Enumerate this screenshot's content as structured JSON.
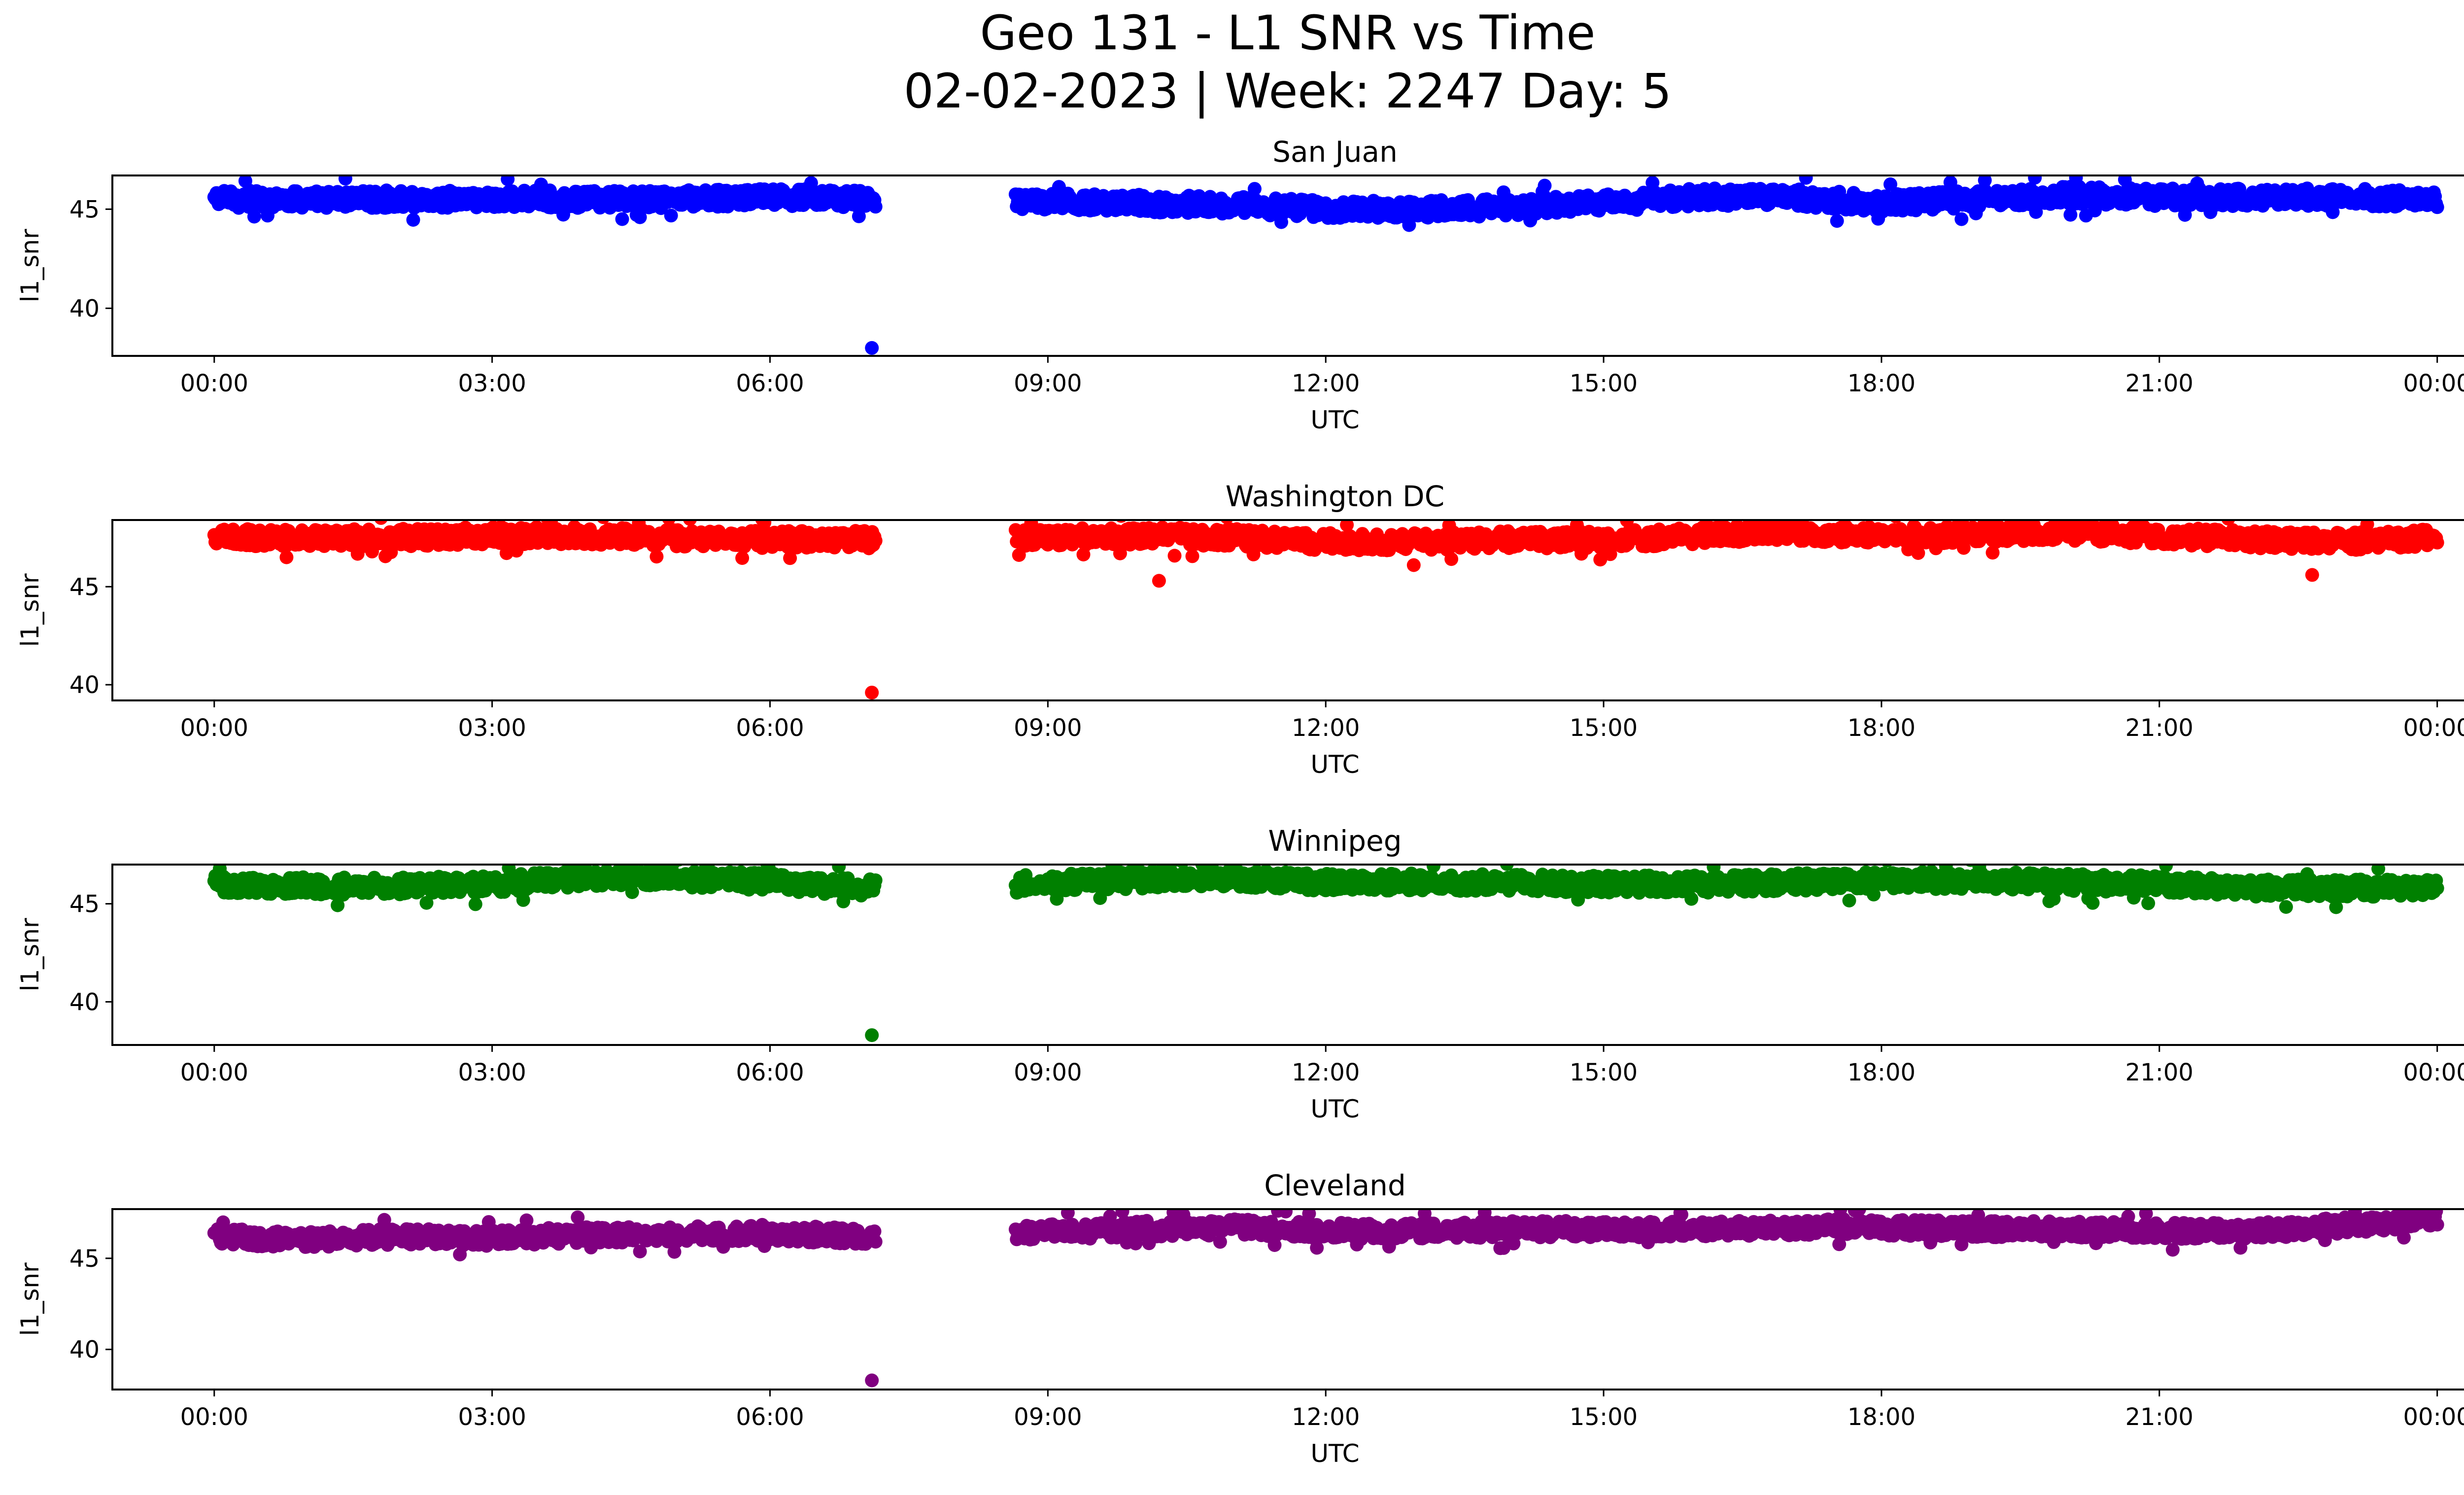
{
  "figure": {
    "title_line1": "Geo 131 - L1 SNR vs Time",
    "title_line2": "02-02-2023 | Week: 2247 Day: 5"
  },
  "chart_data": [
    {
      "type": "scatter",
      "title": "San Juan",
      "xlabel": "UTC",
      "ylabel": "l1_snr",
      "color": "#0000ff",
      "x_ticks": [
        "00:00",
        "03:00",
        "06:00",
        "09:00",
        "12:00",
        "15:00",
        "18:00",
        "21:00",
        "00:00"
      ],
      "y_ticks": [
        40,
        45
      ],
      "xlim": [
        -1.1,
        25.3
      ],
      "ylim": [
        37.6,
        46.7
      ],
      "data_gap_hours": [
        7.15,
        8.65
      ],
      "band": {
        "x": [
          0,
          1,
          2,
          3,
          4,
          5,
          6,
          7.1,
          8.65,
          10,
          11,
          12,
          13,
          14,
          15,
          16,
          17,
          18,
          19,
          20,
          21,
          22,
          23,
          24
        ],
        "y": [
          45.5,
          45.5,
          45.5,
          45.5,
          45.5,
          45.5,
          45.6,
          45.5,
          45.4,
          45.3,
          45.2,
          45.0,
          45.0,
          45.1,
          45.3,
          45.6,
          45.6,
          45.3,
          45.5,
          45.7,
          45.6,
          45.6,
          45.6,
          45.5
        ],
        "spread": 0.45
      },
      "outliers": [
        {
          "x": 7.1,
          "y": 38.0
        }
      ]
    },
    {
      "type": "scatter",
      "title": "Washington DC",
      "xlabel": "UTC",
      "ylabel": "l1_snr",
      "color": "#ff0000",
      "x_ticks": [
        "00:00",
        "03:00",
        "06:00",
        "09:00",
        "12:00",
        "15:00",
        "18:00",
        "21:00",
        "00:00"
      ],
      "y_ticks": [
        40,
        45
      ],
      "xlim": [
        -1.1,
        25.3
      ],
      "ylim": [
        39.2,
        48.4
      ],
      "data_gap_hours": [
        7.15,
        8.65
      ],
      "band": {
        "x": [
          0,
          1,
          2,
          3,
          4,
          5,
          6,
          7.1,
          8.65,
          10,
          11,
          12,
          13,
          14,
          15,
          16,
          17,
          18,
          19,
          20,
          21,
          22,
          23,
          24
        ],
        "y": [
          47.5,
          47.5,
          47.5,
          47.6,
          47.6,
          47.5,
          47.4,
          47.4,
          47.5,
          47.6,
          47.5,
          47.3,
          47.3,
          47.4,
          47.4,
          47.6,
          47.8,
          47.6,
          47.7,
          47.8,
          47.6,
          47.4,
          47.3,
          47.5
        ],
        "spread": 0.45
      },
      "outliers": [
        {
          "x": 7.1,
          "y": 39.6
        },
        {
          "x": 10.2,
          "y": 45.3
        },
        {
          "x": 12.95,
          "y": 46.1
        },
        {
          "x": 22.65,
          "y": 45.6
        }
      ]
    },
    {
      "type": "scatter",
      "title": "Winnipeg",
      "xlabel": "UTC",
      "ylabel": "l1_snr",
      "color": "#008000",
      "x_ticks": [
        "00:00",
        "03:00",
        "06:00",
        "09:00",
        "12:00",
        "15:00",
        "18:00",
        "21:00",
        "00:00"
      ],
      "y_ticks": [
        40,
        45
      ],
      "xlim": [
        -1.1,
        25.3
      ],
      "ylim": [
        37.8,
        47.0
      ],
      "data_gap_hours": [
        7.15,
        8.65
      ],
      "band": {
        "x": [
          0,
          1,
          2,
          3,
          4,
          5,
          6,
          7.1,
          8.65,
          10,
          11,
          12,
          13,
          14,
          15,
          16,
          17,
          18,
          19,
          20,
          21,
          22,
          23,
          24
        ],
        "y": [
          46.0,
          45.9,
          45.9,
          46.0,
          46.3,
          46.3,
          46.1,
          45.8,
          46.0,
          46.2,
          46.3,
          46.1,
          46.1,
          46.1,
          46.0,
          46.0,
          46.1,
          46.2,
          46.2,
          46.1,
          46.0,
          45.8,
          45.8,
          45.8
        ],
        "spread": 0.45
      },
      "outliers": [
        {
          "x": 7.1,
          "y": 38.3
        }
      ]
    },
    {
      "type": "scatter",
      "title": "Cleveland",
      "xlabel": "UTC",
      "ylabel": "l1_snr",
      "color": "#800080",
      "x_ticks": [
        "00:00",
        "03:00",
        "06:00",
        "09:00",
        "12:00",
        "15:00",
        "18:00",
        "21:00",
        "00:00"
      ],
      "y_ticks": [
        40,
        45
      ],
      "xlim": [
        -1.1,
        25.3
      ],
      "ylim": [
        37.8,
        47.7
      ],
      "data_gap_hours": [
        7.15,
        8.65
      ],
      "band": {
        "x": [
          0,
          1,
          2,
          3,
          4,
          5,
          6,
          7.1,
          8.65,
          10,
          11,
          12,
          13,
          14,
          15,
          16,
          17,
          18,
          19,
          20,
          21,
          22,
          23,
          24
        ],
        "y": [
          46.2,
          46.0,
          46.2,
          46.1,
          46.3,
          46.3,
          46.4,
          46.2,
          46.4,
          46.6,
          46.7,
          46.5,
          46.5,
          46.6,
          46.6,
          46.6,
          46.7,
          46.7,
          46.6,
          46.6,
          46.5,
          46.5,
          46.8,
          47.2
        ],
        "spread": 0.45
      },
      "outliers": [
        {
          "x": 7.1,
          "y": 38.3
        }
      ]
    }
  ]
}
